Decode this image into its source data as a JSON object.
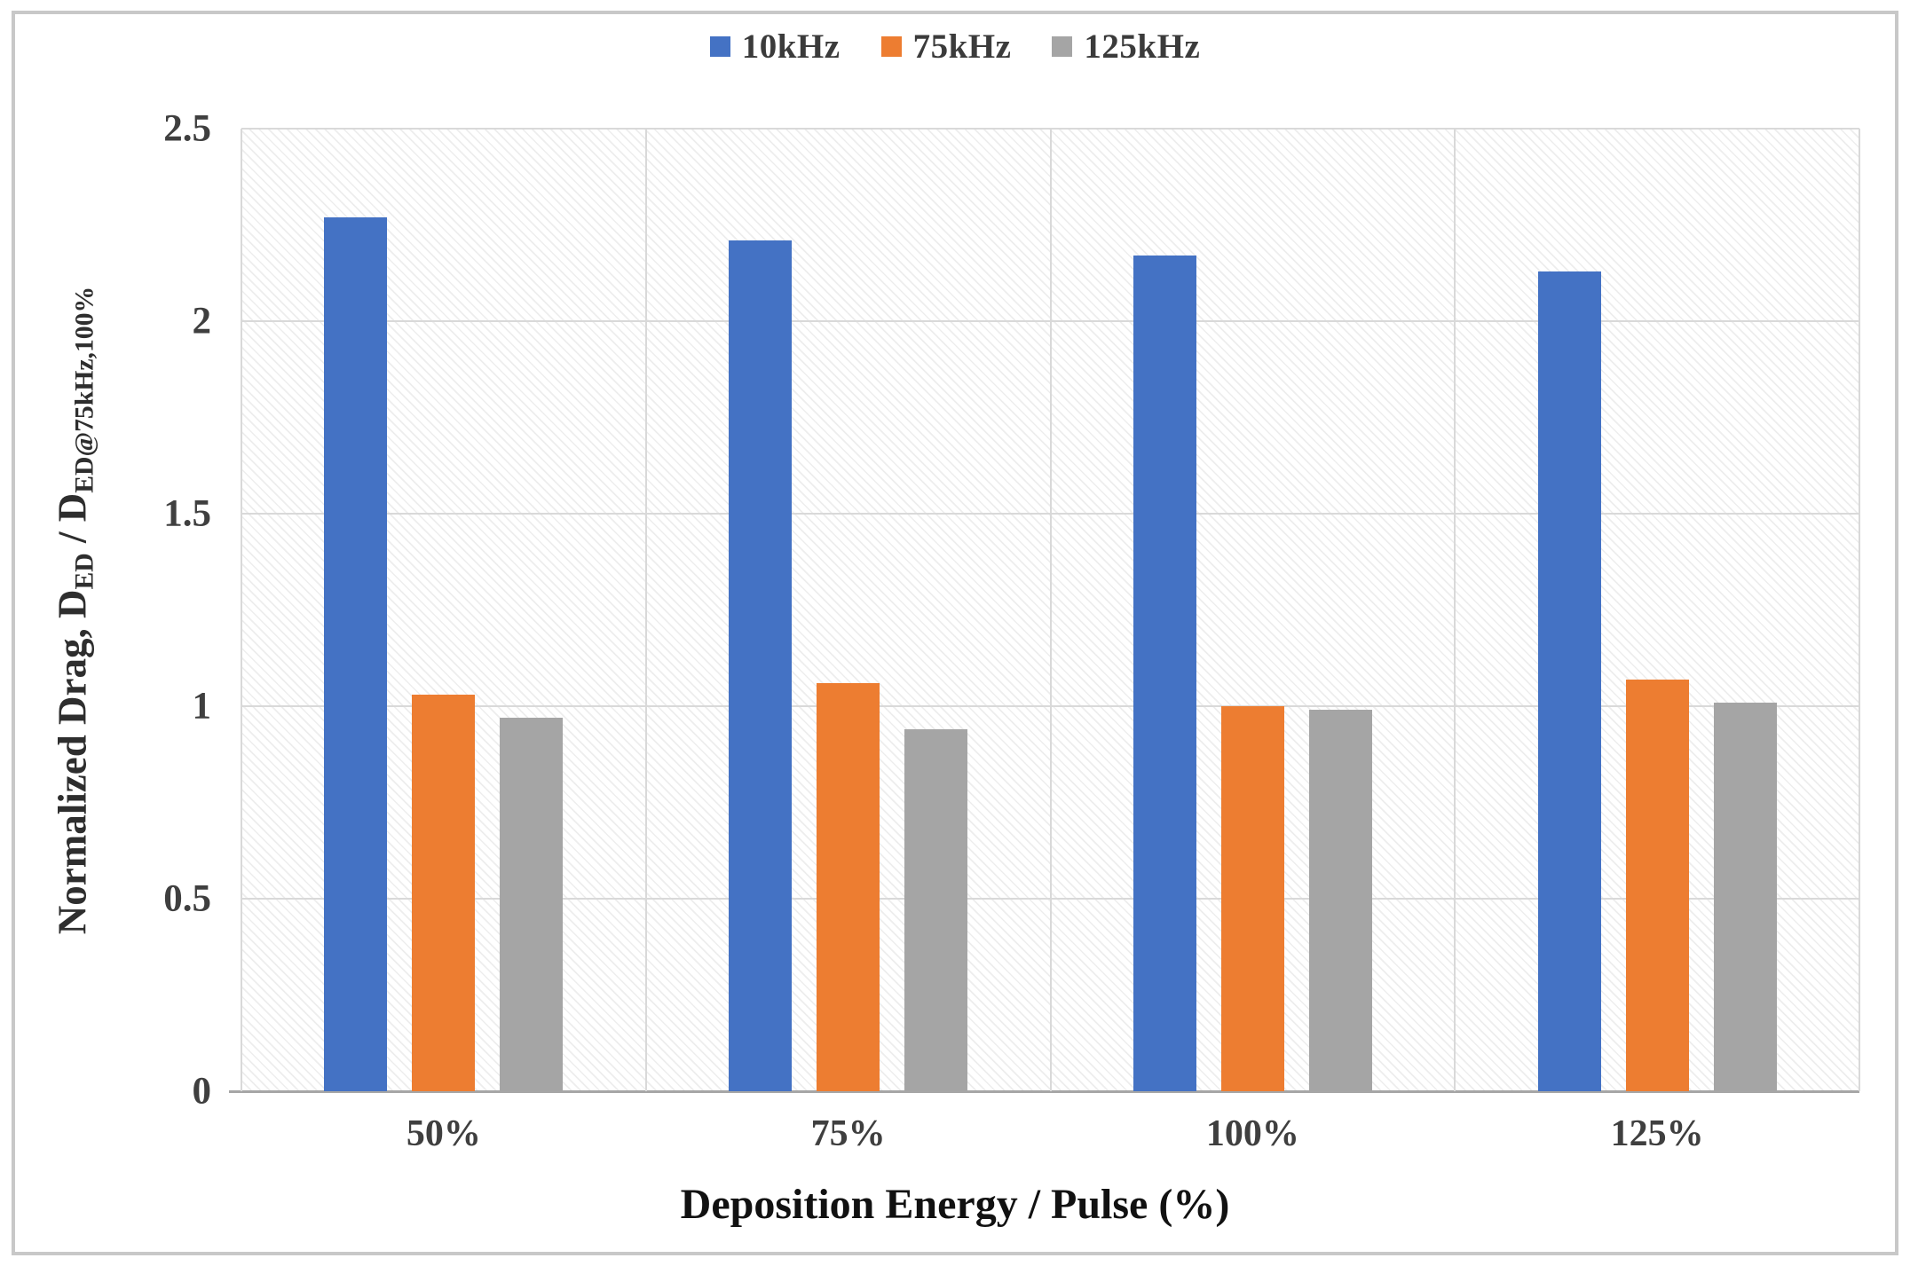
{
  "frame": {
    "background": "#ffffff",
    "border_color": "#c8c8c8"
  },
  "colors": {
    "series_blue": "#4472c4",
    "series_orange": "#ed7d31",
    "series_gray": "#a5a5a5",
    "gridline": "#d9d9d9",
    "axis_line": "#a6a6a6",
    "tick_text": "#3f3f3f",
    "title_text": "#111111"
  },
  "chart_data": {
    "type": "bar",
    "title": "",
    "categories": [
      "50%",
      "75%",
      "100%",
      "125%"
    ],
    "series": [
      {
        "name": "10kHz",
        "color": "#4472c4",
        "values": [
          2.27,
          2.21,
          2.17,
          2.13
        ]
      },
      {
        "name": "75kHz",
        "color": "#ed7d31",
        "values": [
          1.03,
          1.06,
          1.0,
          1.07
        ]
      },
      {
        "name": "125kHz",
        "color": "#a5a5a5",
        "values": [
          0.97,
          0.94,
          0.99,
          1.01
        ]
      }
    ],
    "xlabel": "Deposition Energy / Pulse (%)",
    "ylabel": "Normalized Drag, D_ED / D_ED@75kHz,100%",
    "ylabel_segments": [
      {
        "text": "Normalized Drag, D",
        "sub": false
      },
      {
        "text": "ED",
        "sub": true
      },
      {
        "text": " / D",
        "sub": false
      },
      {
        "text": "ED@75kHz,100%",
        "sub": true
      }
    ],
    "ylim": [
      0,
      2.5
    ],
    "yticks": [
      {
        "label": "2.5",
        "value": 2.5
      },
      {
        "label": "2",
        "value": 2.0
      },
      {
        "label": "1.5",
        "value": 1.5
      },
      {
        "label": "1",
        "value": 1.0
      },
      {
        "label": "0.5",
        "value": 0.5
      },
      {
        "label": "0",
        "value": 0.0
      }
    ],
    "grid": true,
    "plot_background_pattern": "light-diagonal-hatch",
    "legend_position": "top"
  }
}
